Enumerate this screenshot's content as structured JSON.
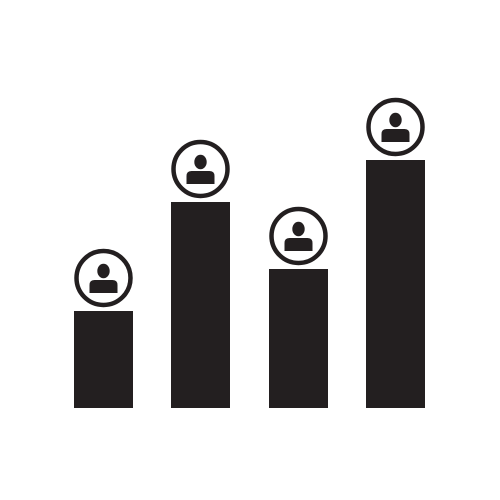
{
  "icon": {
    "name": "user-growth-bar-chart-icon",
    "description_kind": "pictogram",
    "colors": {
      "fill": "#231f20",
      "background": "#ffffff"
    },
    "bars": [
      {
        "id": "bar-1",
        "relative_height": 0.39,
        "has_avatar": true
      },
      {
        "id": "bar-2",
        "relative_height": 0.83,
        "has_avatar": true
      },
      {
        "id": "bar-3",
        "relative_height": 0.56,
        "has_avatar": true
      },
      {
        "id": "bar-4",
        "relative_height": 1.0,
        "has_avatar": true
      }
    ],
    "avatar_icon": "user-icon"
  }
}
